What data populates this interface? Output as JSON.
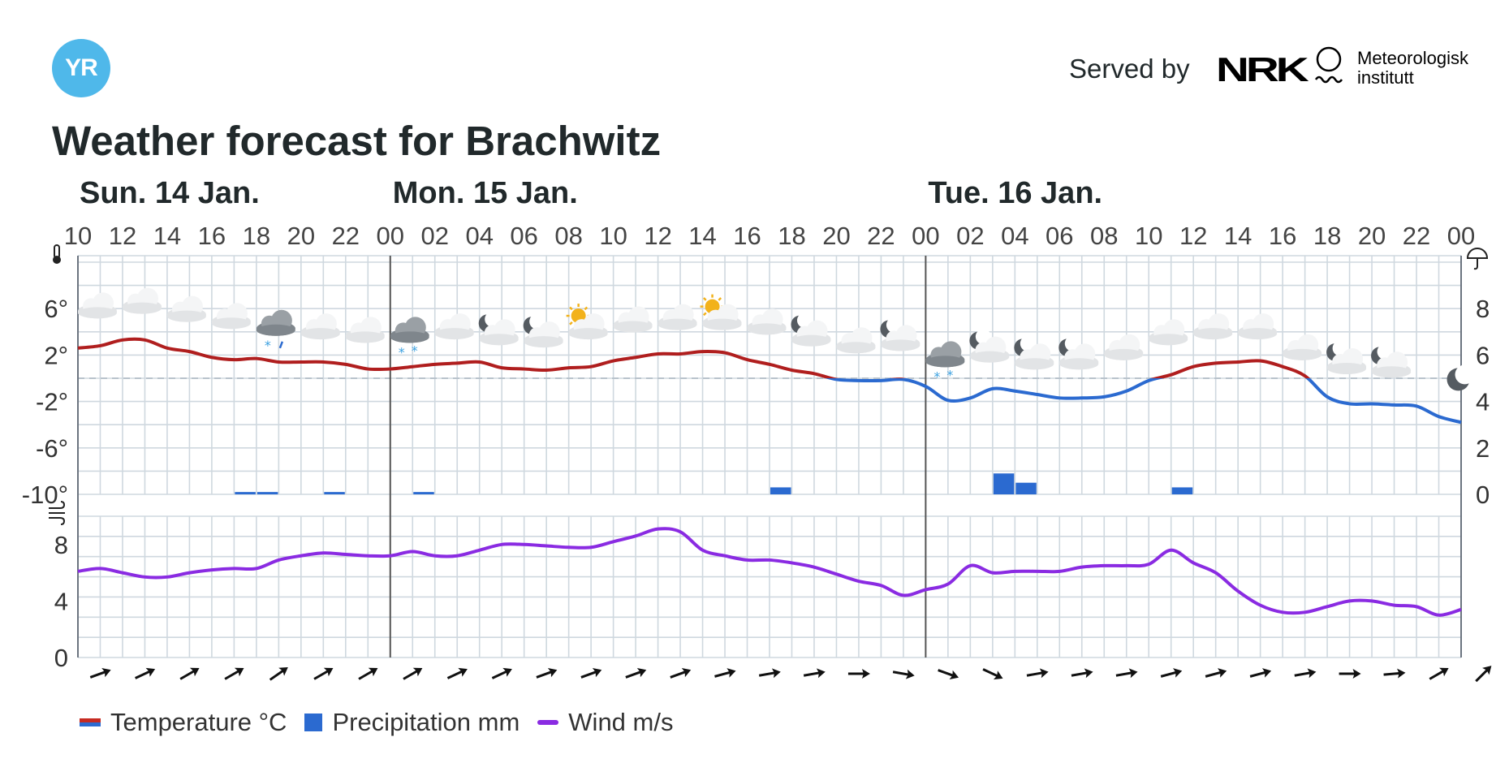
{
  "header": {
    "logo_text": "YR",
    "served_by": "Served by",
    "nrk_logo": "NRK",
    "met_name_line1": "Meteorologisk",
    "met_name_line2": "institutt",
    "title": "Weather forecast for Brachwitz"
  },
  "colors": {
    "temp_warm": "#b01e1e",
    "temp_cold": "#2b6ad0",
    "precip": "#2b6ad0",
    "wind": "#8a2be2",
    "grid": "#cfd8df",
    "day_divider": "#555555"
  },
  "chart_data": {
    "type": "line",
    "days": [
      {
        "label": "Sun. 14 Jan.",
        "start_hour_index": 0
      },
      {
        "label": "Mon. 15 Jan.",
        "start_hour_index": 14
      },
      {
        "label": "Tue. 16 Jan.",
        "start_hour_index": 38
      }
    ],
    "hour_labels": [
      "10",
      "12",
      "14",
      "16",
      "18",
      "20",
      "22",
      "00",
      "02",
      "04",
      "06",
      "08",
      "10",
      "12",
      "14",
      "16",
      "18",
      "20",
      "22",
      "00",
      "02",
      "04",
      "06",
      "08",
      "10",
      "12",
      "14",
      "16",
      "18",
      "20",
      "22",
      "00"
    ],
    "hours": [
      10,
      11,
      12,
      13,
      14,
      15,
      16,
      17,
      18,
      19,
      20,
      21,
      22,
      23,
      0,
      1,
      2,
      3,
      4,
      5,
      6,
      7,
      8,
      9,
      10,
      11,
      12,
      13,
      14,
      15,
      16,
      17,
      18,
      19,
      20,
      21,
      22,
      23,
      0,
      1,
      2,
      3,
      4,
      5,
      6,
      7,
      8,
      9,
      10,
      11,
      12,
      13,
      14,
      15,
      16,
      17,
      18,
      19,
      20,
      21,
      22,
      23,
      0
    ],
    "temperature": {
      "unit": "°C",
      "axis_ticks": [
        "6°",
        "2°",
        "-2°",
        "-6°",
        "-10°"
      ],
      "ylim": [
        -10,
        10
      ],
      "values": [
        2.6,
        2.8,
        3.3,
        3.3,
        2.6,
        2.3,
        1.8,
        1.6,
        1.7,
        1.4,
        1.4,
        1.4,
        1.2,
        0.8,
        0.8,
        1.0,
        1.2,
        1.3,
        1.4,
        0.9,
        0.8,
        0.7,
        0.9,
        1.0,
        1.5,
        1.8,
        2.1,
        2.1,
        2.3,
        2.2,
        1.6,
        1.2,
        0.7,
        0.4,
        -0.1,
        -0.2,
        -0.2,
        -0.1,
        -0.7,
        -1.9,
        -1.7,
        -0.9,
        -1.1,
        -1.4,
        -1.7,
        -1.7,
        -1.6,
        -1.1,
        -0.2,
        0.3,
        1.0,
        1.3,
        1.4,
        1.5,
        1.0,
        0.2,
        -1.6,
        -2.2,
        -2.2,
        -2.3,
        -2.4,
        -3.3,
        -3.8
      ]
    },
    "precipitation": {
      "unit": "mm",
      "axis_ticks": [
        "8",
        "6",
        "4",
        "2",
        "0"
      ],
      "ylim": [
        0,
        10
      ],
      "values": [
        0,
        0,
        0,
        0,
        0,
        0,
        0,
        0.1,
        0.1,
        0,
        0,
        0.1,
        0,
        0,
        0,
        0.1,
        0,
        0,
        0,
        0,
        0,
        0,
        0,
        0,
        0,
        0,
        0,
        0,
        0,
        0,
        0,
        0.3,
        0,
        0,
        0,
        0,
        0,
        0,
        0,
        0,
        0,
        0.9,
        0.5,
        0,
        0,
        0,
        0,
        0,
        0,
        0.3,
        0,
        0,
        0,
        0,
        0,
        0,
        0,
        0,
        0,
        0,
        0,
        0,
        0
      ]
    },
    "wind": {
      "unit": "m/s",
      "axis_ticks": [
        "8",
        "4",
        "0"
      ],
      "ylim": [
        0,
        10
      ],
      "values": [
        6.1,
        6.3,
        6.0,
        5.7,
        5.7,
        6.0,
        6.2,
        6.3,
        6.3,
        6.9,
        7.2,
        7.4,
        7.3,
        7.2,
        7.2,
        7.5,
        7.2,
        7.2,
        7.6,
        8.0,
        8.0,
        7.9,
        7.8,
        7.8,
        8.2,
        8.6,
        9.1,
        8.9,
        7.6,
        7.2,
        6.9,
        6.9,
        6.7,
        6.4,
        5.9,
        5.4,
        5.1,
        4.4,
        4.8,
        5.2,
        6.5,
        6.0,
        6.1,
        6.1,
        6.1,
        6.4,
        6.5,
        6.5,
        6.6,
        7.6,
        6.7,
        6.0,
        4.7,
        3.7,
        3.2,
        3.2,
        3.6,
        4.0,
        4.0,
        3.7,
        3.6,
        3.0,
        3.4
      ],
      "direction_arrow_angles_deg": [
        -20,
        -25,
        -30,
        -30,
        -35,
        -30,
        -30,
        -30,
        -25,
        -25,
        -20,
        -20,
        -20,
        -20,
        -15,
        -10,
        -10,
        0,
        10,
        20,
        25,
        -10,
        -10,
        -10,
        -15,
        -15,
        -15,
        -10,
        0,
        -5,
        -30,
        -45,
        -55,
        -65
      ]
    },
    "weather_symbols": [
      {
        "hour_index": 0,
        "icon": "cloud-icon",
        "temp": 6.2
      },
      {
        "hour_index": 2,
        "icon": "cloud-icon",
        "temp": 6.6
      },
      {
        "hour_index": 4,
        "icon": "cloud-icon",
        "temp": 5.9
      },
      {
        "hour_index": 6,
        "icon": "cloud-icon",
        "temp": 5.3
      },
      {
        "hour_index": 8,
        "icon": "dark-cloud-light-sleet-icon",
        "temp": 4.7
      },
      {
        "hour_index": 10,
        "icon": "cloud-icon",
        "temp": 4.4
      },
      {
        "hour_index": 12,
        "icon": "cloud-icon",
        "temp": 4.1
      },
      {
        "hour_index": 14,
        "icon": "dark-cloud-light-snow-icon",
        "temp": 4.1
      },
      {
        "hour_index": 16,
        "icon": "cloud-icon",
        "temp": 4.4
      },
      {
        "hour_index": 18,
        "icon": "partly-cloudy-night-icon",
        "temp": 3.9
      },
      {
        "hour_index": 20,
        "icon": "partly-cloudy-night-icon",
        "temp": 3.7
      },
      {
        "hour_index": 22,
        "icon": "partly-cloudy-day-icon",
        "temp": 4.4
      },
      {
        "hour_index": 24,
        "icon": "cloud-icon",
        "temp": 5.0
      },
      {
        "hour_index": 26,
        "icon": "cloud-icon",
        "temp": 5.2
      },
      {
        "hour_index": 28,
        "icon": "partly-cloudy-day-icon",
        "temp": 5.2
      },
      {
        "hour_index": 30,
        "icon": "cloud-icon",
        "temp": 4.8
      },
      {
        "hour_index": 32,
        "icon": "partly-cloudy-night-icon",
        "temp": 3.8
      },
      {
        "hour_index": 34,
        "icon": "cloud-icon",
        "temp": 3.2
      },
      {
        "hour_index": 36,
        "icon": "partly-cloudy-night-icon",
        "temp": 3.4
      },
      {
        "hour_index": 38,
        "icon": "dark-cloud-light-snow-icon",
        "temp": 2.0
      },
      {
        "hour_index": 40,
        "icon": "partly-cloudy-night-icon",
        "temp": 2.4
      },
      {
        "hour_index": 42,
        "icon": "partly-cloudy-night-icon",
        "temp": 1.8
      },
      {
        "hour_index": 44,
        "icon": "partly-cloudy-night-icon",
        "temp": 1.8
      },
      {
        "hour_index": 46,
        "icon": "cloud-icon",
        "temp": 2.6
      },
      {
        "hour_index": 48,
        "icon": "cloud-icon",
        "temp": 3.9
      },
      {
        "hour_index": 50,
        "icon": "cloud-icon",
        "temp": 4.4
      },
      {
        "hour_index": 52,
        "icon": "cloud-icon",
        "temp": 4.4
      },
      {
        "hour_index": 54,
        "icon": "cloud-icon",
        "temp": 2.6
      },
      {
        "hour_index": 56,
        "icon": "partly-cloudy-night-icon",
        "temp": 1.4
      },
      {
        "hour_index": 58,
        "icon": "partly-cloudy-night-icon",
        "temp": 1.1
      },
      {
        "hour_index": 61,
        "icon": "moon-icon",
        "temp": -0.1
      }
    ],
    "icons": {
      "temperature_axis": "thermometer-icon",
      "precipitation_axis": "umbrella-icon",
      "wind_axis": "wind-icon"
    }
  },
  "legend": {
    "temperature": "Temperature °C",
    "precipitation": "Precipitation mm",
    "wind": "Wind m/s"
  }
}
